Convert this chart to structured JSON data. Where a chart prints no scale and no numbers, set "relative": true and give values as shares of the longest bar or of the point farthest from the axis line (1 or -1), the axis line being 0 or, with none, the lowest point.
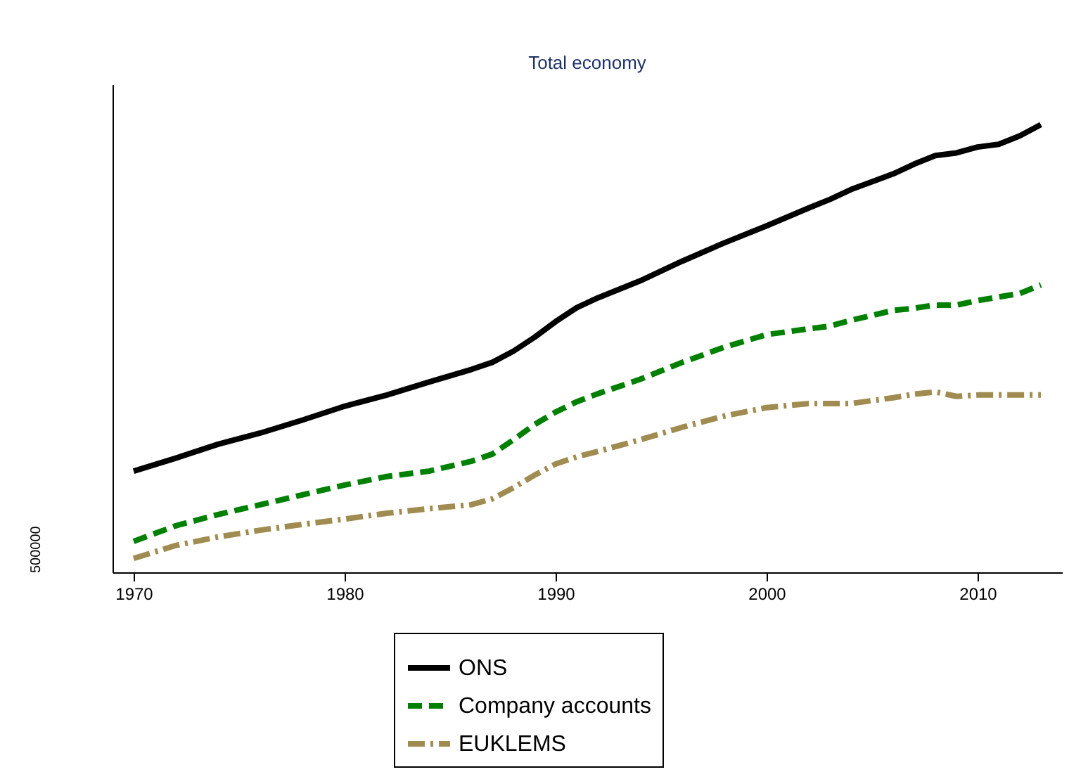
{
  "chart_data": {
    "type": "line",
    "title": "Total economy",
    "ylabel": "500000",
    "relative": true,
    "xlim": [
      1969,
      2014
    ],
    "xticks": [
      1970,
      1980,
      1990,
      2000,
      2010
    ],
    "legend": "bottom",
    "marker": "none",
    "x": [
      1970,
      1972,
      1974,
      1976,
      1978,
      1980,
      1982,
      1984,
      1986,
      1987,
      1988,
      1989,
      1990,
      1991,
      1992,
      1994,
      1996,
      1998,
      2000,
      2002,
      2003,
      2004,
      2006,
      2007,
      2008,
      2009,
      2010,
      2011,
      2012,
      2013
    ],
    "series": [
      {
        "name": "ONS",
        "color": "#000000",
        "line_style": "solid",
        "values": [
          0.226,
          0.255,
          0.286,
          0.311,
          0.34,
          0.371,
          0.396,
          0.425,
          0.453,
          0.469,
          0.494,
          0.525,
          0.56,
          0.591,
          0.613,
          0.651,
          0.695,
          0.736,
          0.774,
          0.814,
          0.833,
          0.855,
          0.89,
          0.912,
          0.931,
          0.937,
          0.95,
          0.956,
          0.975,
          1
        ]
      },
      {
        "name": "Company accounts",
        "color": "#008000",
        "line_style": "dashed",
        "values": [
          0.069,
          0.104,
          0.129,
          0.151,
          0.173,
          0.195,
          0.214,
          0.226,
          0.248,
          0.264,
          0.296,
          0.33,
          0.358,
          0.381,
          0.399,
          0.431,
          0.469,
          0.503,
          0.531,
          0.544,
          0.55,
          0.563,
          0.585,
          0.59,
          0.597,
          0.597,
          0.607,
          0.615,
          0.623,
          0.642
        ]
      },
      {
        "name": "EUKLEMS",
        "color": "#a08c50",
        "line_style": "dashdot",
        "values": [
          0.031,
          0.06,
          0.079,
          0.094,
          0.107,
          0.119,
          0.132,
          0.142,
          0.151,
          0.164,
          0.189,
          0.217,
          0.242,
          0.258,
          0.27,
          0.296,
          0.324,
          0.349,
          0.368,
          0.377,
          0.377,
          0.377,
          0.39,
          0.398,
          0.403,
          0.393,
          0.396,
          0.396,
          0.396,
          0.396
        ]
      }
    ]
  }
}
